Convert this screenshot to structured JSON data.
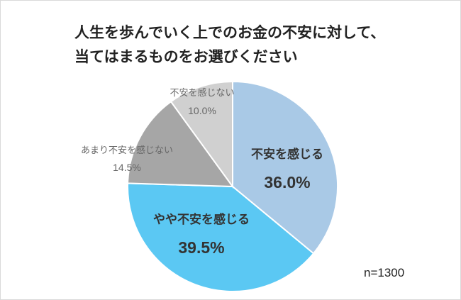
{
  "title_lines": [
    "人生を歩んでいく上でのお金の不安に対して、",
    "当てはまるものをお選びください"
  ],
  "note": "n=1300",
  "chart_data": {
    "type": "pie",
    "title": "人生を歩んでいく上でのお金の不安に対して、当てはまるものをお選びください",
    "categories": [
      "不安を感じる",
      "やや不安を感じる",
      "あまり不安を感じない",
      "不安を感じない"
    ],
    "values": [
      36.0,
      39.5,
      14.5,
      10.0
    ],
    "value_labels": [
      "36.0%",
      "39.5%",
      "14.5%",
      "10.0%"
    ],
    "unit": "%",
    "colors": [
      "#a9c9e6",
      "#5bc8f3",
      "#a6a6a6",
      "#d0d0d0"
    ],
    "start": "12 o'clock",
    "direction": "clockwise",
    "legend": "none"
  }
}
